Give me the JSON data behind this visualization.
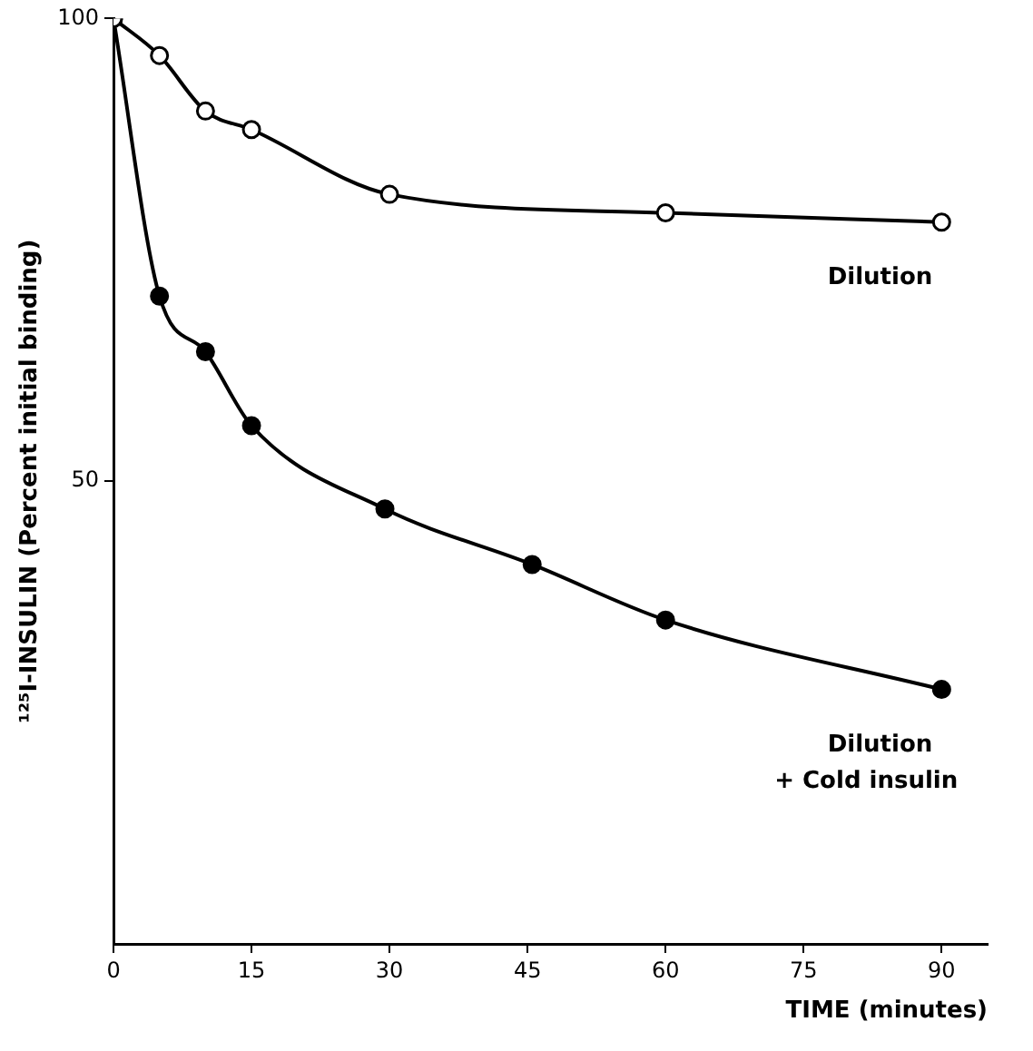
{
  "chart_data": {
    "type": "line",
    "xlabel": "TIME (minutes)",
    "ylabel": "¹²⁵I-INSULIN (Percent initial binding)",
    "xlim": [
      0,
      95
    ],
    "xticks": [
      0,
      15,
      30,
      45,
      60,
      75,
      90
    ],
    "ylim": [
      0,
      100
    ],
    "yticks": [
      50,
      100
    ],
    "grid": false,
    "legend": false,
    "marker": "circle",
    "line_style": "solid",
    "series": [
      {
        "name": "Dilution",
        "color": "#000000",
        "x": [
          0,
          5,
          10,
          15,
          30,
          60,
          90
        ],
        "values": [
          100,
          96,
          90,
          88,
          81,
          79,
          78
        ]
      },
      {
        "name": "Dilution\n+ Cold insulin",
        "color": "#000000",
        "x": [
          0,
          5,
          10,
          15,
          29.5,
          45.5,
          60,
          90
        ],
        "values": [
          100,
          70,
          64,
          56,
          47,
          41,
          35,
          27.5
        ]
      }
    ]
  }
}
